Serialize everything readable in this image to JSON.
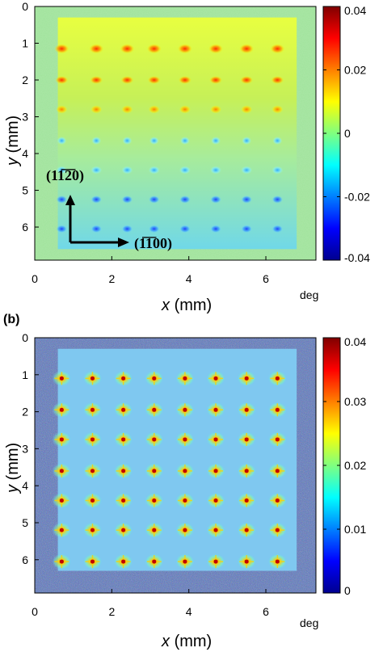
{
  "chart_data": [
    {
      "type": "heatmap",
      "panel_label": "",
      "xlabel": "x",
      "xlabel_unit": "(mm)",
      "ylabel": "y",
      "ylabel_unit": "(mm)",
      "xlim": [
        0,
        7.3
      ],
      "ylim": [
        0,
        6.9
      ],
      "y_inverted": true,
      "x_ticks": [
        "0",
        "2",
        "4",
        "6"
      ],
      "y_ticks": [
        "0",
        "1",
        "2",
        "3",
        "4",
        "5",
        "6"
      ],
      "colorbar": {
        "unit": "deg",
        "min": -0.04,
        "max": 0.04,
        "ticks": [
          "0.04",
          "0.02",
          "0",
          "-0.02",
          "-0.04"
        ],
        "colormap": "jet"
      },
      "annotations": [
        {
          "text": "(11̅2̅0)",
          "display": "(11̅2̅0)"
        },
        {
          "text": "(1̅1̅00)",
          "display": "(1̅1̅00)"
        }
      ],
      "background_color": "#9fe39a",
      "square_region_x": [
        0.6,
        6.8
      ],
      "square_region_y": [
        0.3,
        6.6
      ],
      "dot_grid_x": [
        0.7,
        1.6,
        2.4,
        3.1,
        3.9,
        4.7,
        5.5,
        6.3
      ],
      "dot_grid_y": [
        1.15,
        2.0,
        2.8,
        3.65,
        4.45,
        5.25,
        6.05
      ],
      "grid": false
    },
    {
      "type": "heatmap",
      "panel_label": "(b)",
      "xlabel": "x",
      "xlabel_unit": "(mm)",
      "ylabel": "y",
      "ylabel_unit": "(mm)",
      "xlim": [
        0,
        7.3
      ],
      "ylim": [
        0,
        6.9
      ],
      "y_inverted": true,
      "x_ticks": [
        "0",
        "2",
        "4",
        "6"
      ],
      "y_ticks": [
        "0",
        "1",
        "2",
        "3",
        "4",
        "5",
        "6"
      ],
      "colorbar": {
        "unit": "deg",
        "min": 0,
        "max": 0.04,
        "ticks": [
          "0.04",
          "0.03",
          "0.02",
          "0.01",
          "0"
        ],
        "colormap": "jet"
      },
      "background_color": "#5a78c8",
      "square_region_x": [
        0.6,
        6.8
      ],
      "square_region_y": [
        0.3,
        6.3
      ],
      "dot_grid_x": [
        0.7,
        1.5,
        2.3,
        3.1,
        3.9,
        4.7,
        5.5,
        6.3
      ],
      "dot_grid_y": [
        1.1,
        1.95,
        2.75,
        3.6,
        4.4,
        5.2,
        6.05
      ],
      "grid": false
    }
  ]
}
